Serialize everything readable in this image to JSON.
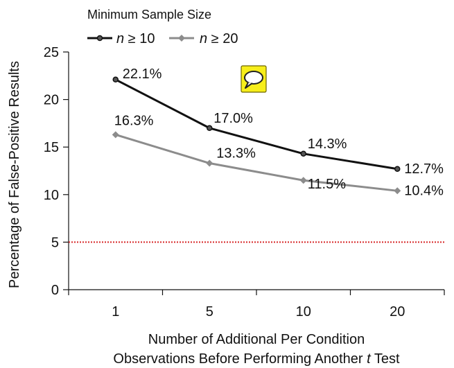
{
  "chart_data": {
    "type": "line",
    "title": "",
    "xlabel_lines": [
      "Number of Additional Per Condition",
      "Observations Before Performing Another ",
      "t",
      " Test"
    ],
    "ylabel": "Percentage of False-Positive Results",
    "categories": [
      "1",
      "5",
      "10",
      "20"
    ],
    "ylim": [
      0,
      25
    ],
    "yticks": [
      0,
      5,
      10,
      15,
      20,
      25
    ],
    "grid": false,
    "legend": {
      "title": "Minimum Sample Size",
      "placement": "top-left",
      "entries": [
        {
          "var": "n",
          "rest": " ≥ 10"
        },
        {
          "var": "n",
          "rest": " ≥ 20"
        }
      ]
    },
    "series": [
      {
        "name": "n ≥ 10",
        "color": "#111111",
        "values": [
          22.1,
          17.0,
          14.3,
          12.7
        ],
        "labels": [
          "22.1%",
          "17.0%",
          "14.3%",
          "12.7%"
        ]
      },
      {
        "name": "n ≥ 20",
        "color": "#8c8c8c",
        "values": [
          16.3,
          13.3,
          11.5,
          10.4
        ],
        "labels": [
          "16.3%",
          "13.3%",
          "11.5%",
          "10.4%"
        ]
      }
    ],
    "reference_line": {
      "y": 5,
      "color": "#d62728",
      "style": "dotted"
    },
    "annotation_icon": "speech-bubble-icon"
  }
}
